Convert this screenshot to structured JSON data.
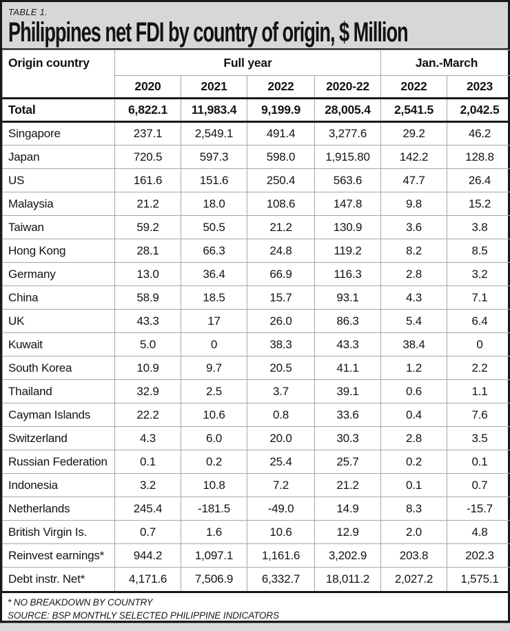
{
  "table_label": "TABLE 1.",
  "title": "Philippines net FDI by country of origin, $ Million",
  "header": {
    "origin": "Origin country",
    "full_year": "Full year",
    "jan_march": "Jan.-March",
    "years": [
      "2020",
      "2021",
      "2022",
      "2020-22",
      "2022",
      "2023"
    ]
  },
  "footnotes": {
    "note": "* NO BREAKDOWN BY COUNTRY",
    "source": "SOURCE: BSP MONTHLY SELECTED PHILIPPINE INDICATORS"
  },
  "colors": {
    "band_background": "#d7d7d7",
    "grid_line": "#a6a6a6",
    "heavy_line": "#181818",
    "text": "#121212"
  },
  "chart_data": {
    "type": "table",
    "title": "Philippines net FDI by country of origin, $ Million",
    "column_groups": [
      {
        "label": "Full year",
        "span": 4
      },
      {
        "label": "Jan.-March",
        "span": 2
      }
    ],
    "columns": [
      "Origin country",
      "2020",
      "2021",
      "2022",
      "2020-22",
      "2022",
      "2023"
    ],
    "rows": [
      {
        "label": "Total",
        "bold": true,
        "values": [
          "6,822.1",
          "11,983.4",
          "9,199.9",
          "28,005.4",
          "2,541.5",
          "2,042.5"
        ]
      },
      {
        "label": "Singapore",
        "values": [
          "237.1",
          "2,549.1",
          "491.4",
          "3,277.6",
          "29.2",
          "46.2"
        ]
      },
      {
        "label": "Japan",
        "values": [
          "720.5",
          "597.3",
          "598.0",
          "1,915.80",
          "142.2",
          "128.8"
        ]
      },
      {
        "label": "US",
        "values": [
          "161.6",
          "151.6",
          "250.4",
          "563.6",
          "47.7",
          "26.4"
        ]
      },
      {
        "label": "Malaysia",
        "values": [
          "21.2",
          "18.0",
          "108.6",
          "147.8",
          "9.8",
          "15.2"
        ]
      },
      {
        "label": "Taiwan",
        "values": [
          "59.2",
          "50.5",
          "21.2",
          "130.9",
          "3.6",
          "3.8"
        ]
      },
      {
        "label": "Hong Kong",
        "values": [
          "28.1",
          "66.3",
          "24.8",
          "119.2",
          "8.2",
          "8.5"
        ]
      },
      {
        "label": "Germany",
        "values": [
          "13.0",
          "36.4",
          "66.9",
          "116.3",
          "2.8",
          "3.2"
        ]
      },
      {
        "label": "China",
        "values": [
          "58.9",
          "18.5",
          "15.7",
          "93.1",
          "4.3",
          "7.1"
        ]
      },
      {
        "label": "UK",
        "values": [
          "43.3",
          "17",
          "26.0",
          "86.3",
          "5.4",
          "6.4"
        ]
      },
      {
        "label": "Kuwait",
        "values": [
          "5.0",
          "0",
          "38.3",
          "43.3",
          "38.4",
          "0"
        ]
      },
      {
        "label": "South Korea",
        "values": [
          "10.9",
          "9.7",
          "20.5",
          "41.1",
          "1.2",
          "2.2"
        ]
      },
      {
        "label": "Thailand",
        "values": [
          "32.9",
          "2.5",
          "3.7",
          "39.1",
          "0.6",
          "1.1"
        ]
      },
      {
        "label": "Cayman Islands",
        "values": [
          "22.2",
          "10.6",
          "0.8",
          "33.6",
          "0.4",
          "7.6"
        ]
      },
      {
        "label": "Switzerland",
        "values": [
          "4.3",
          "6.0",
          "20.0",
          "30.3",
          "2.8",
          "3.5"
        ]
      },
      {
        "label": "Russian Federation",
        "values": [
          "0.1",
          "0.2",
          "25.4",
          "25.7",
          "0.2",
          "0.1"
        ]
      },
      {
        "label": "Indonesia",
        "values": [
          "3.2",
          "10.8",
          "7.2",
          "21.2",
          "0.1",
          "0.7"
        ]
      },
      {
        "label": "Netherlands",
        "values": [
          "245.4",
          "-181.5",
          "-49.0",
          "14.9",
          "8.3",
          "-15.7"
        ]
      },
      {
        "label": "British Virgin Is.",
        "values": [
          "0.7",
          "1.6",
          "10.6",
          "12.9",
          "2.0",
          "4.8"
        ]
      },
      {
        "label": "Reinvest earnings*",
        "values": [
          "944.2",
          "1,097.1",
          "1,161.6",
          "3,202.9",
          "203.8",
          "202.3"
        ]
      },
      {
        "label": "Debt instr. Net*",
        "values": [
          "4,171.6",
          "7,506.9",
          "6,332.7",
          "18,011.2",
          "2,027.2",
          "1,575.1"
        ]
      }
    ]
  }
}
